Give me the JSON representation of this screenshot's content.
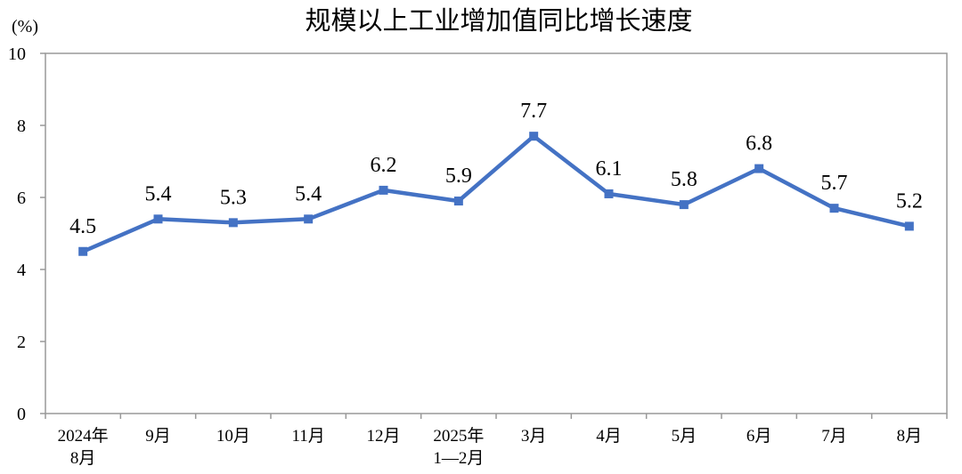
{
  "chart_data": {
    "type": "line",
    "title": "规模以上工业增加值同比增长速度",
    "unit_label": "(%)",
    "categories": [
      [
        "2024年",
        "8月"
      ],
      [
        "9月"
      ],
      [
        "10月"
      ],
      [
        "11月"
      ],
      [
        "12月"
      ],
      [
        "2025年",
        "1—2月"
      ],
      [
        "3月"
      ],
      [
        "4月"
      ],
      [
        "5月"
      ],
      [
        "6月"
      ],
      [
        "7月"
      ],
      [
        "8月"
      ]
    ],
    "values": [
      4.5,
      5.4,
      5.3,
      5.4,
      6.2,
      5.9,
      7.7,
      6.1,
      5.8,
      6.8,
      5.7,
      5.2
    ],
    "data_labels": [
      "4.5",
      "5.4",
      "5.3",
      "5.4",
      "6.2",
      "5.9",
      "7.7",
      "6.1",
      "5.8",
      "6.8",
      "5.7",
      "5.2"
    ],
    "ylim": [
      0,
      10
    ],
    "yticks": [
      0,
      2,
      4,
      6,
      8,
      10
    ],
    "grid": false,
    "legend": "none",
    "colors": {
      "line": "#4472C4",
      "frame": "#999999"
    }
  }
}
